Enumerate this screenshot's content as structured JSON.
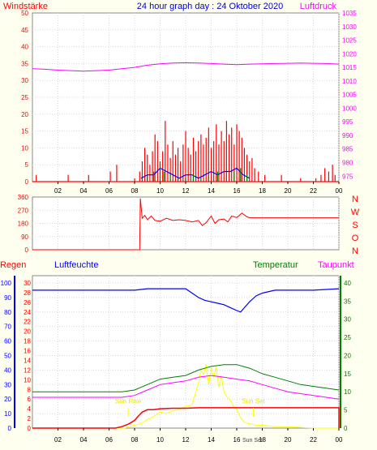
{
  "title": "24 hour graph day : 24 Oktober 2020",
  "x_ticks": [
    "02",
    "04",
    "06",
    "08",
    "10",
    "12",
    "14",
    "16",
    "18",
    "20",
    "22",
    "00"
  ],
  "colors": {
    "background": "#fffff0",
    "plot_bg": "#ffffff",
    "grid": "#d8d8d8",
    "wind": "#ff0000",
    "pressure": "#ff00ff",
    "direction": "#ff0000",
    "rain": "#ff0000",
    "humidity": "#0000ff",
    "temperature": "#008000",
    "dewpoint": "#ff00ff",
    "solar": "#ffff00",
    "title": "#0000cc"
  },
  "chart_data": [
    {
      "type": "line",
      "id": "wind-pressure",
      "left_label": "Windstärke",
      "right_label": "Luftdruck",
      "left_ticks": [
        0,
        5,
        10,
        15,
        20,
        25,
        30,
        35,
        40,
        45,
        50
      ],
      "ylim": [
        0,
        50
      ],
      "right_ticks": [
        975,
        980,
        985,
        990,
        995,
        1000,
        1005,
        1010,
        1015,
        1020,
        1025,
        1030,
        1035
      ],
      "y2lim": [
        973,
        1035
      ],
      "series": [
        {
          "key": "pressure",
          "axis": "right",
          "x": [
            0,
            1,
            2,
            3,
            4,
            5,
            6,
            7,
            8,
            9,
            10,
            11,
            12,
            13,
            14,
            15,
            16,
            17,
            18,
            19,
            20,
            21,
            22,
            23,
            24
          ],
          "y": [
            1014.5,
            1014.3,
            1014.0,
            1013.8,
            1013.6,
            1013.8,
            1014.0,
            1014.5,
            1015.0,
            1015.8,
            1016.3,
            1016.6,
            1016.7,
            1016.6,
            1016.4,
            1016.2,
            1016.0,
            1016.2,
            1016.3,
            1016.4,
            1016.5,
            1016.6,
            1016.5,
            1016.4,
            1016.2
          ]
        },
        {
          "key": "wind_gust",
          "axis": "left",
          "x": [
            0.3,
            2.8,
            4.4,
            6.1,
            6.6,
            8.0,
            8.4,
            8.6,
            8.8,
            9.0,
            9.2,
            9.4,
            9.6,
            9.8,
            10.0,
            10.2,
            10.4,
            10.6,
            10.8,
            11.0,
            11.2,
            11.4,
            11.6,
            11.8,
            12.0,
            12.2,
            12.4,
            12.6,
            12.8,
            13.0,
            13.2,
            13.4,
            13.6,
            13.8,
            14.0,
            14.2,
            14.4,
            14.6,
            14.8,
            15.0,
            15.2,
            15.4,
            15.6,
            15.8,
            16.0,
            16.2,
            16.4,
            16.6,
            16.8,
            17.0,
            17.2,
            17.4,
            17.7,
            18.2,
            19.5,
            21.0,
            22.2,
            22.6,
            22.9,
            23.2,
            23.5,
            23.7
          ],
          "y": [
            2,
            2,
            2,
            3,
            5,
            1,
            3,
            6,
            10,
            8,
            5,
            9,
            14,
            12,
            6,
            9,
            18,
            11,
            7,
            12,
            8,
            10,
            6,
            11,
            15,
            10,
            8,
            13,
            9,
            12,
            14,
            11,
            13,
            16,
            10,
            12,
            17,
            11,
            15,
            12,
            18,
            14,
            16,
            11,
            17,
            15,
            13,
            10,
            8,
            6,
            7,
            4,
            3,
            2,
            2,
            1,
            1,
            2,
            4,
            3,
            5,
            2
          ]
        },
        {
          "key": "wind_avg",
          "axis": "left",
          "x": [
            8.5,
            9.0,
            9.5,
            10.0,
            10.5,
            11.0,
            11.5,
            12.0,
            12.5,
            13.0,
            13.5,
            14.0,
            14.5,
            15.0,
            15.5,
            16.0,
            16.5,
            17.0
          ],
          "y": [
            1,
            2,
            2,
            4,
            3,
            2,
            1,
            2,
            2,
            1,
            2,
            3,
            2,
            3,
            3,
            4,
            2,
            1
          ]
        },
        {
          "key": "wind_green",
          "axis": "left",
          "x": [
            8.6,
            9.0,
            9.5,
            10.0,
            10.3,
            10.8,
            11.4,
            12.0,
            12.6,
            13.2,
            13.8,
            14.5,
            15.2,
            15.8,
            16.3,
            16.8
          ],
          "y": [
            1,
            2,
            3,
            5,
            3,
            2,
            1,
            1,
            2,
            1,
            2,
            3,
            2,
            3,
            4,
            2
          ]
        }
      ]
    },
    {
      "type": "line",
      "id": "wind-direction",
      "left_ticks": [
        0,
        90,
        180,
        270,
        360
      ],
      "ylim": [
        0,
        360
      ],
      "right_labels": [
        "N",
        "W",
        "S",
        "O",
        "N"
      ],
      "series": [
        {
          "key": "direction",
          "x": [
            0,
            8.4,
            8.45,
            8.6,
            8.8,
            9.0,
            9.3,
            9.6,
            10.0,
            10.5,
            11.0,
            11.5,
            12.0,
            12.5,
            13.0,
            13.3,
            13.6,
            14.0,
            14.3,
            14.6,
            15.0,
            15.3,
            15.6,
            16.0,
            16.4,
            16.8,
            17.0,
            18.0,
            20.0,
            22.0,
            24.0
          ],
          "y": [
            0,
            0,
            350,
            215,
            235,
            205,
            230,
            200,
            195,
            215,
            200,
            205,
            200,
            190,
            200,
            165,
            185,
            230,
            180,
            205,
            210,
            190,
            230,
            220,
            250,
            225,
            218,
            218,
            218,
            218,
            218
          ]
        }
      ]
    },
    {
      "type": "line",
      "id": "rain-humidity-temperature",
      "labels": {
        "rain": "Regen",
        "humidity": "Luftfeuchte",
        "temperature": "Temperatur",
        "dewpoint": "Taupunkt"
      },
      "humidity_ticks": [
        0,
        10,
        20,
        30,
        40,
        50,
        60,
        70,
        80,
        90,
        100
      ],
      "humidity_lim": [
        0,
        105
      ],
      "rain_ticks": [
        0,
        2,
        4,
        6,
        8,
        10,
        12,
        14,
        16,
        18,
        20,
        22,
        24,
        26,
        28,
        30
      ],
      "rain_lim": [
        0,
        31.5
      ],
      "temperature_ticks": [
        0,
        5,
        10,
        15,
        20,
        25,
        30,
        35,
        40
      ],
      "temperature_lim": [
        0,
        42
      ],
      "annotations": {
        "sunrise": "Sun Rise",
        "sunset": "Sun Set",
        "sunset_time": "Sun Set"
      },
      "sunrise_hour": 7.5,
      "sunset_hour": 17.3,
      "series": [
        {
          "key": "humidity",
          "axis": "humidity",
          "x": [
            0,
            2,
            4,
            6,
            7,
            8,
            9,
            10,
            11,
            12,
            12.5,
            13,
            13.5,
            14,
            14.5,
            15,
            15.5,
            16,
            16.3,
            16.6,
            17,
            17.5,
            18,
            19,
            20,
            22,
            24
          ],
          "y": [
            95,
            95,
            95,
            95,
            95,
            95,
            96,
            96,
            96,
            96,
            93,
            90,
            88,
            87,
            86,
            85,
            83,
            81,
            80,
            83,
            87,
            91,
            93,
            95,
            95,
            95,
            96
          ]
        },
        {
          "key": "temperature",
          "axis": "temperature",
          "x": [
            0,
            2,
            4,
            6,
            7,
            8,
            9,
            10,
            11,
            12,
            13,
            14,
            15,
            16,
            17,
            18,
            19,
            20,
            21,
            22,
            23,
            24
          ],
          "y": [
            10.0,
            10.0,
            10.0,
            10.0,
            10.0,
            10.5,
            12.0,
            13.5,
            14.0,
            14.5,
            16.0,
            17.0,
            17.5,
            17.5,
            16.5,
            15.0,
            14.0,
            13.0,
            12.0,
            11.5,
            11.0,
            10.5
          ]
        },
        {
          "key": "dewpoint",
          "axis": "temperature",
          "x": [
            0,
            2,
            4,
            6,
            7,
            8,
            9,
            10,
            11,
            12,
            13,
            14,
            15,
            16,
            17,
            18,
            19,
            20,
            21,
            22,
            23,
            24
          ],
          "y": [
            8.5,
            8.5,
            8.5,
            8.5,
            8.5,
            9.0,
            10.5,
            12.0,
            12.5,
            13.0,
            14.0,
            14.5,
            14.0,
            13.5,
            13.0,
            12.0,
            11.0,
            10.0,
            9.5,
            9.0,
            8.5,
            8.0
          ]
        },
        {
          "key": "rain",
          "axis": "rain",
          "x": [
            0,
            6.5,
            7.0,
            7.5,
            8.0,
            8.3,
            8.6,
            9.0,
            9.5,
            10.0,
            11.0,
            12.0,
            13.0,
            24.0,
            24.0
          ],
          "y": [
            0,
            0,
            0.3,
            0.8,
            1.6,
            2.5,
            3.3,
            3.8,
            3.8,
            4.0,
            4.1,
            4.1,
            4.2,
            4.2,
            0
          ]
        },
        {
          "key": "solar",
          "axis": "humidity",
          "x": [
            0,
            7.2,
            8.0,
            8.5,
            9.0,
            9.5,
            10.0,
            10.5,
            11.0,
            11.5,
            12.0,
            12.5,
            12.8,
            13.0,
            13.2,
            13.4,
            13.6,
            13.8,
            14.0,
            14.2,
            14.4,
            14.6,
            14.8,
            15.0,
            15.2,
            15.4,
            15.6,
            15.8,
            16.0,
            16.2,
            16.4,
            16.6,
            17.0,
            17.5,
            18.0,
            19.0,
            20.0,
            22.0,
            24.0
          ],
          "y": [
            0,
            0,
            2,
            3,
            6,
            8,
            11,
            10,
            12,
            13,
            15,
            16,
            25,
            31,
            40,
            37,
            44,
            30,
            41,
            35,
            42,
            28,
            36,
            25,
            22,
            20,
            18,
            14,
            13,
            9,
            6,
            4,
            3,
            2,
            2,
            1,
            1,
            0,
            0
          ]
        }
      ]
    }
  ]
}
